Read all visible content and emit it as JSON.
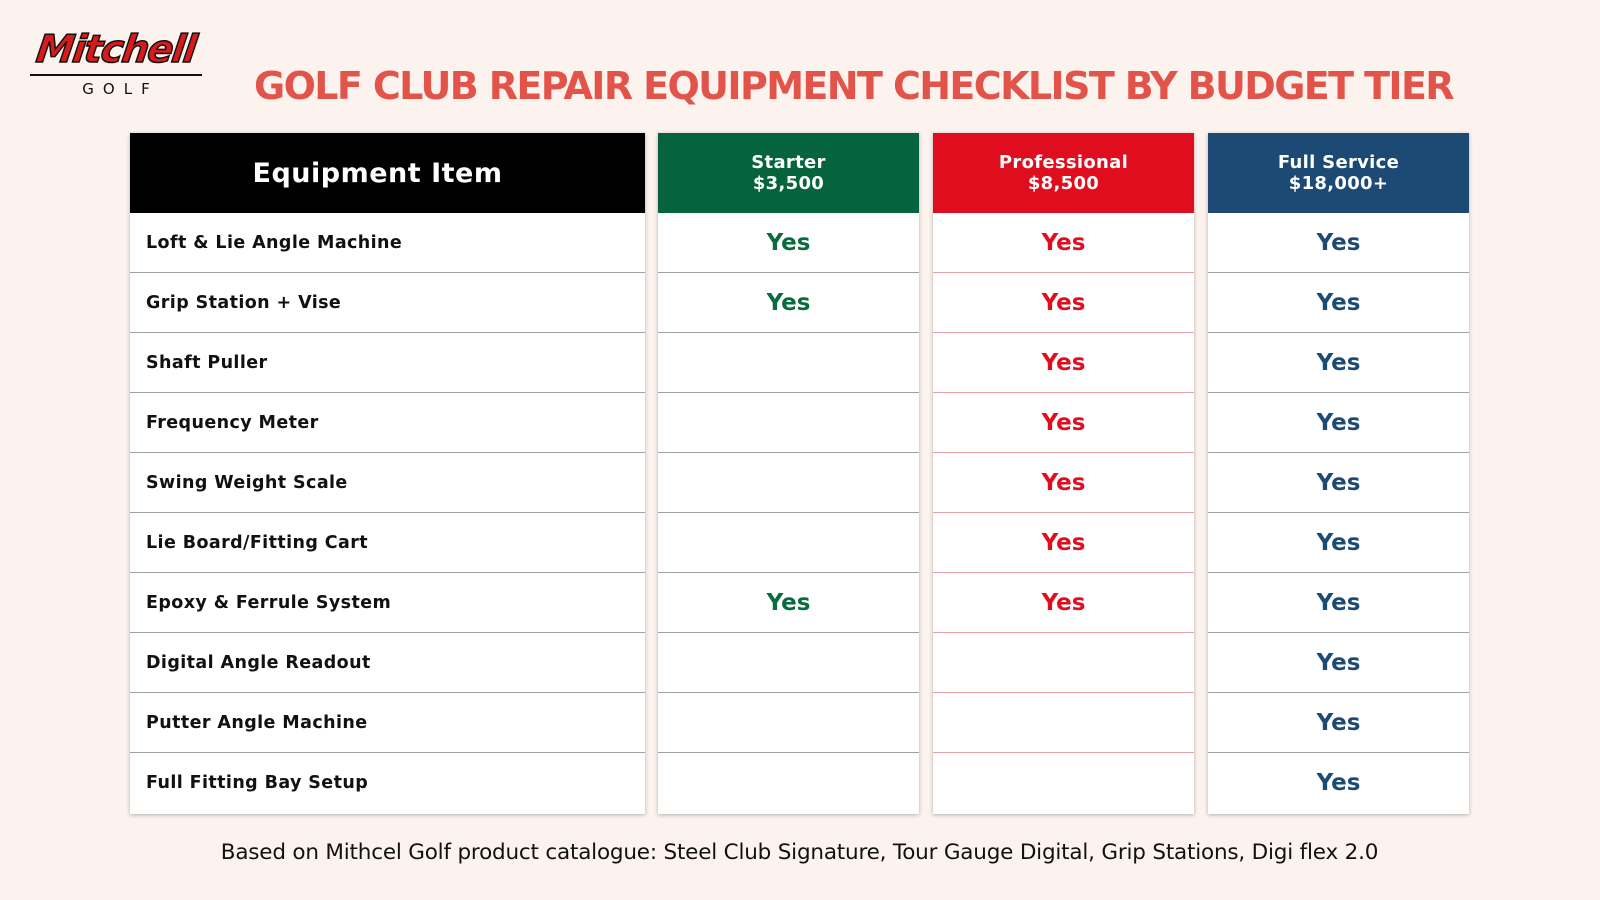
{
  "logo": {
    "brand": "Mitchell",
    "sub": "GOLF"
  },
  "title": "GOLF CLUB REPAIR EQUIPMENT CHECKLIST BY BUDGET TIER",
  "table": {
    "item_header": "Equipment Item",
    "tiers": [
      {
        "name": "Starter",
        "price": "$3,500",
        "color": "#05643c"
      },
      {
        "name": "Professional",
        "price": "$8,500",
        "color": "#e00d1f"
      },
      {
        "name": "Full Service",
        "price": "$18,000+",
        "color": "#1c4a74"
      }
    ],
    "rows": [
      {
        "item": "Loft & Lie Angle Machine",
        "starter": "Yes",
        "professional": "Yes",
        "full_service": "Yes"
      },
      {
        "item": "Grip Station + Vise",
        "starter": "Yes",
        "professional": "Yes",
        "full_service": "Yes"
      },
      {
        "item": "Shaft Puller",
        "starter": "",
        "professional": "Yes",
        "full_service": "Yes"
      },
      {
        "item": "Frequency Meter",
        "starter": "",
        "professional": "Yes",
        "full_service": "Yes"
      },
      {
        "item": "Swing Weight Scale",
        "starter": "",
        "professional": "Yes",
        "full_service": "Yes"
      },
      {
        "item": "Lie Board/Fitting Cart",
        "starter": "",
        "professional": "Yes",
        "full_service": "Yes"
      },
      {
        "item": "Epoxy & Ferrule System",
        "starter": "Yes",
        "professional": "Yes",
        "full_service": "Yes"
      },
      {
        "item": "Digital Angle Readout",
        "starter": "",
        "professional": "",
        "full_service": "Yes"
      },
      {
        "item": "Putter Angle Machine",
        "starter": "",
        "professional": "",
        "full_service": "Yes"
      },
      {
        "item": "Full Fitting Bay Setup",
        "starter": "",
        "professional": "",
        "full_service": "Yes"
      }
    ]
  },
  "footnote": "Based on Mithcel Golf product catalogue: Steel Club Signature, Tour Gauge Digital, Grip Stations, Digi flex 2.0"
}
